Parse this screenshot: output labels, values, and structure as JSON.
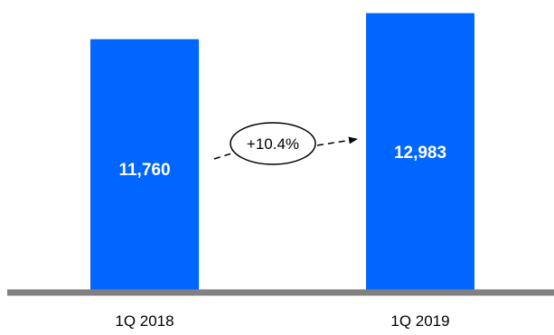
{
  "chart_data": {
    "type": "bar",
    "categories": [
      "1Q 2018",
      "1Q 2019"
    ],
    "values": [
      11760,
      12983
    ],
    "data_labels": [
      "11,760",
      "12,983"
    ],
    "ylim": [
      0,
      13600
    ],
    "grid": false,
    "legend": "none",
    "annotation": {
      "text": "+10.4%",
      "from": "1Q 2018",
      "to": "1Q 2019"
    }
  },
  "colors": {
    "bar": "#0066ff",
    "baseline": "#808080",
    "bar_label": "#ffffff",
    "text": "#000000"
  }
}
